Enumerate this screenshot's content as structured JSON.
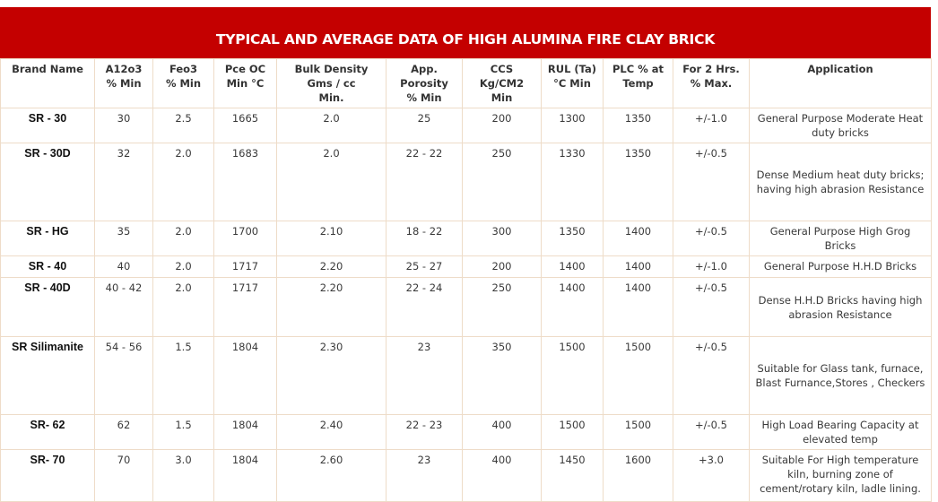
{
  "title": "TYPICAL AND AVERAGE DATA OF HIGH ALUMINA FIRE CLAY BRICK",
  "colors": {
    "banner": "#c40000",
    "grid": "#eedcc8"
  },
  "columns": [
    "Brand Name",
    "A12o3\n% Min",
    "Feo3\n% Min",
    "Pce OC\nMin °C",
    "Bulk Density\nGms / cc\nMin.",
    "App.\nPorosity\n% Min",
    "CCS\nKg/CM2\nMin",
    "RUL (Ta)\n°C Min",
    "PLC % at\nTemp",
    "For 2 Hrs.\n% Max.",
    "Application"
  ],
  "rows": [
    [
      "SR - 30",
      "30",
      "2.5",
      "1665",
      "2.0",
      "25",
      "200",
      "1300",
      "1350",
      "+/-1.0",
      "General Purpose Moderate Heat duty bricks"
    ],
    [
      "SR - 30D",
      "32",
      "2.0",
      "1683",
      "2.0",
      "22 - 22",
      "250",
      "1330",
      "1350",
      "+/-0.5",
      "Dense Medium heat duty bricks; having high abrasion Resistance"
    ],
    [
      "SR - HG",
      "35",
      "2.0",
      "1700",
      "2.10",
      "18 - 22",
      "300",
      "1350",
      "1400",
      "+/-0.5",
      "General Purpose High Grog Bricks"
    ],
    [
      "SR - 40",
      "40",
      "2.0",
      "1717",
      "2.20",
      "25 - 27",
      "200",
      "1400",
      "1400",
      "+/-1.0",
      "General Purpose H.H.D Bricks"
    ],
    [
      "SR - 40D",
      "40 - 42",
      "2.0",
      "1717",
      "2.20",
      "22 - 24",
      "250",
      "1400",
      "1400",
      "+/-0.5",
      "Dense H.H.D Bricks having high abrasion Resistance"
    ],
    [
      "SR Silimanite",
      "54 - 56",
      "1.5",
      "1804",
      "2.30",
      "23",
      "350",
      "1500",
      "1500",
      "+/-0.5",
      "Suitable for Glass tank, furnace, Blast Furnance,Stores , Checkers"
    ],
    [
      "SR- 62",
      "62",
      "1.5",
      "1804",
      "2.40",
      "22 - 23",
      "400",
      "1500",
      "1500",
      "+/-0.5",
      "High Load Bearing Capacity at elevated temp"
    ],
    [
      "SR- 70",
      "70",
      "3.0",
      "1804",
      "2.60",
      "23",
      "400",
      "1450",
      "1600",
      "+3.0",
      "Suitable For High temperature kiln, burning zone of cement/rotary kiln, ladle lining."
    ]
  ]
}
